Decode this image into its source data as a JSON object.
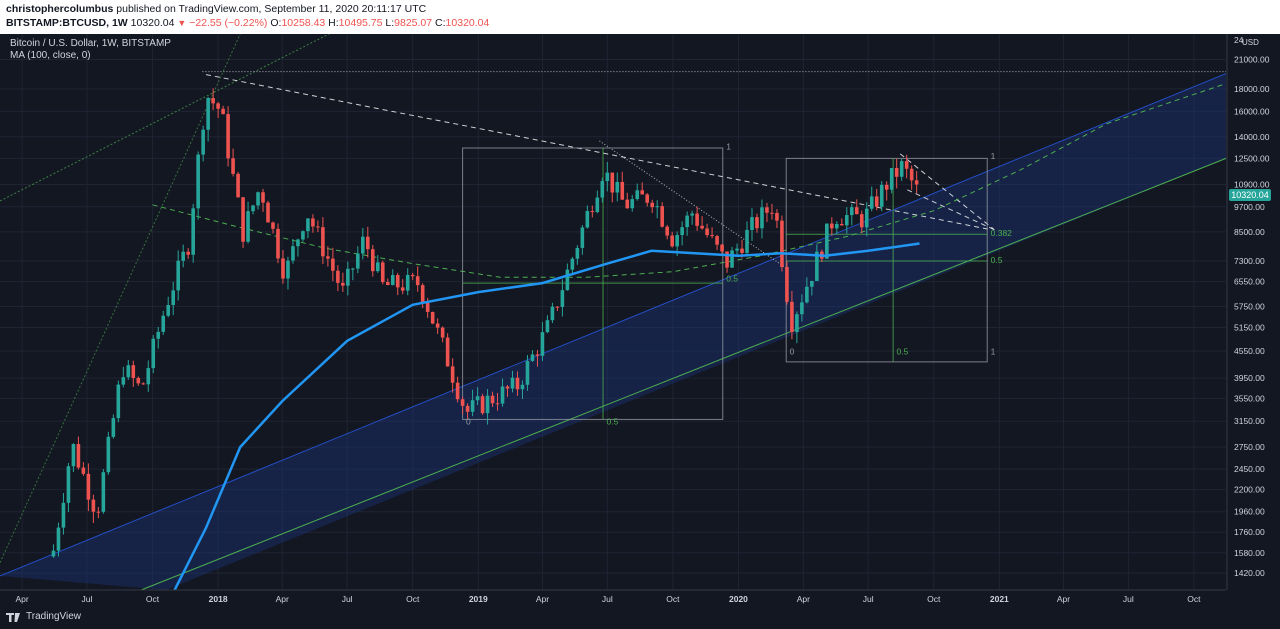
{
  "header": {
    "author": "christophercolumbus",
    "published": "published on TradingView.com, September 11, 2020 20:11:17 UTC",
    "symbol": "BITSTAMP:BTCUSD, 1W",
    "last": "10320.04",
    "change": "−22.55 (−0.22%)",
    "o_label": "O:",
    "o_value": "10258.43",
    "h_label": "H:",
    "h_value": "10495.75",
    "l_label": "L:",
    "l_value": "9825.07",
    "c_label": "C:",
    "c_value": "10320.04"
  },
  "legend": {
    "title": "Bitcoin / U.S. Dollar, 1W, BITSTAMP",
    "indicator": "MA (100, close, 0)"
  },
  "footer": {
    "brand": "TradingView"
  },
  "colors": {
    "background": "#131722",
    "up": "#26a69a",
    "down": "#ef5350",
    "ma": "#2196f3",
    "trend_green": "#4caf50",
    "channel_fill": "#1e3a8a",
    "grid": "#1f2433"
  },
  "chart_data": {
    "type": "candlestick",
    "y_scale": "log",
    "ylim": [
      1300,
      24000
    ],
    "y_ticks": [
      21000,
      18000,
      16000,
      14000,
      12500,
      10900,
      9700,
      8500,
      7300,
      6550,
      5750,
      5150,
      4550,
      3950,
      3550,
      3150,
      2750,
      2450,
      2200,
      1960,
      1760,
      1580,
      1420
    ],
    "y_tick_labels": [
      "21000.00",
      "18000.00",
      "16000.00",
      "14000.00",
      "12500.00",
      "10900.00",
      "9700.00",
      "8500.00",
      "7300.00",
      "6550.00",
      "5750.00",
      "5150.00",
      "4550.00",
      "3950.00",
      "3550.00",
      "3150.00",
      "2750.00",
      "2450.00",
      "2200.00",
      "1960.00",
      "1760.00",
      "1580.00",
      "1420.00"
    ],
    "y_top_label": "24",
    "y_unit": "USD",
    "last_price": "10320.04",
    "xlim": [
      "2017-03-01",
      "2021-11-15"
    ],
    "x_ticks": [
      {
        "date": "2017-04-01",
        "label": "Apr"
      },
      {
        "date": "2017-07-01",
        "label": "Jul"
      },
      {
        "date": "2017-10-01",
        "label": "Oct"
      },
      {
        "date": "2018-01-01",
        "label": "2018"
      },
      {
        "date": "2018-04-01",
        "label": "Apr"
      },
      {
        "date": "2018-07-01",
        "label": "Jul"
      },
      {
        "date": "2018-10-01",
        "label": "Oct"
      },
      {
        "date": "2019-01-01",
        "label": "2019"
      },
      {
        "date": "2019-04-01",
        "label": "Apr"
      },
      {
        "date": "2019-07-01",
        "label": "Jul"
      },
      {
        "date": "2019-10-01",
        "label": "Oct"
      },
      {
        "date": "2020-01-01",
        "label": "2020"
      },
      {
        "date": "2020-04-01",
        "label": "Apr"
      },
      {
        "date": "2020-07-01",
        "label": "Jul"
      },
      {
        "date": "2020-10-01",
        "label": "Oct"
      },
      {
        "date": "2021-01-01",
        "label": "2021"
      },
      {
        "date": "2021-04-01",
        "label": "Apr"
      },
      {
        "date": "2021-07-01",
        "label": "Jul"
      },
      {
        "date": "2021-10-01",
        "label": "Oct"
      }
    ],
    "close_path": [
      [
        "2017-05-15",
        1600
      ],
      [
        "2017-06-10",
        2800
      ],
      [
        "2017-07-15",
        1950
      ],
      [
        "2017-08-20",
        4200
      ],
      [
        "2017-09-15",
        3700
      ],
      [
        "2017-10-20",
        5800
      ],
      [
        "2017-11-20",
        8000
      ],
      [
        "2017-12-15",
        17500
      ],
      [
        "2018-01-05",
        16000
      ],
      [
        "2018-02-05",
        8500
      ],
      [
        "2018-03-01",
        10800
      ],
      [
        "2018-04-05",
        6800
      ],
      [
        "2018-05-05",
        9500
      ],
      [
        "2018-06-25",
        6200
      ],
      [
        "2018-07-25",
        8200
      ],
      [
        "2018-08-20",
        6400
      ],
      [
        "2018-10-10",
        6500
      ],
      [
        "2018-11-20",
        4300
      ],
      [
        "2018-12-15",
        3300
      ],
      [
        "2019-01-20",
        3550
      ],
      [
        "2019-02-25",
        3800
      ],
      [
        "2019-04-10",
        5200
      ],
      [
        "2019-05-20",
        8000
      ],
      [
        "2019-06-25",
        11800
      ],
      [
        "2019-07-25",
        9800
      ],
      [
        "2019-09-01",
        10300
      ],
      [
        "2019-10-01",
        8200
      ],
      [
        "2019-10-28",
        9400
      ],
      [
        "2019-12-15",
        7200
      ],
      [
        "2020-01-20",
        8700
      ],
      [
        "2020-02-20",
        9900
      ],
      [
        "2020-03-15",
        5300
      ],
      [
        "2020-04-15",
        7000
      ],
      [
        "2020-05-15",
        9300
      ],
      [
        "2020-06-25",
        9100
      ],
      [
        "2020-07-28",
        11000
      ],
      [
        "2020-08-18",
        12000
      ],
      [
        "2020-09-11",
        10320
      ]
    ],
    "ma_path": [
      [
        "2017-11-01",
        1300
      ],
      [
        "2017-12-15",
        1800
      ],
      [
        "2018-02-01",
        2750
      ],
      [
        "2018-04-01",
        3500
      ],
      [
        "2018-07-01",
        4800
      ],
      [
        "2018-10-01",
        5800
      ],
      [
        "2019-01-01",
        6200
      ],
      [
        "2019-04-01",
        6500
      ],
      [
        "2019-07-01",
        7200
      ],
      [
        "2019-09-01",
        7700
      ],
      [
        "2019-11-01",
        7600
      ],
      [
        "2020-01-01",
        7500
      ],
      [
        "2020-03-01",
        7600
      ],
      [
        "2020-05-01",
        7500
      ],
      [
        "2020-07-01",
        7700
      ],
      [
        "2020-09-11",
        8000
      ]
    ],
    "annotations": {
      "fib_labels": [
        "0.5",
        "0.5",
        "0.5",
        "0.5",
        "0.382",
        "1",
        "0",
        "0",
        "1",
        "1"
      ]
    }
  }
}
